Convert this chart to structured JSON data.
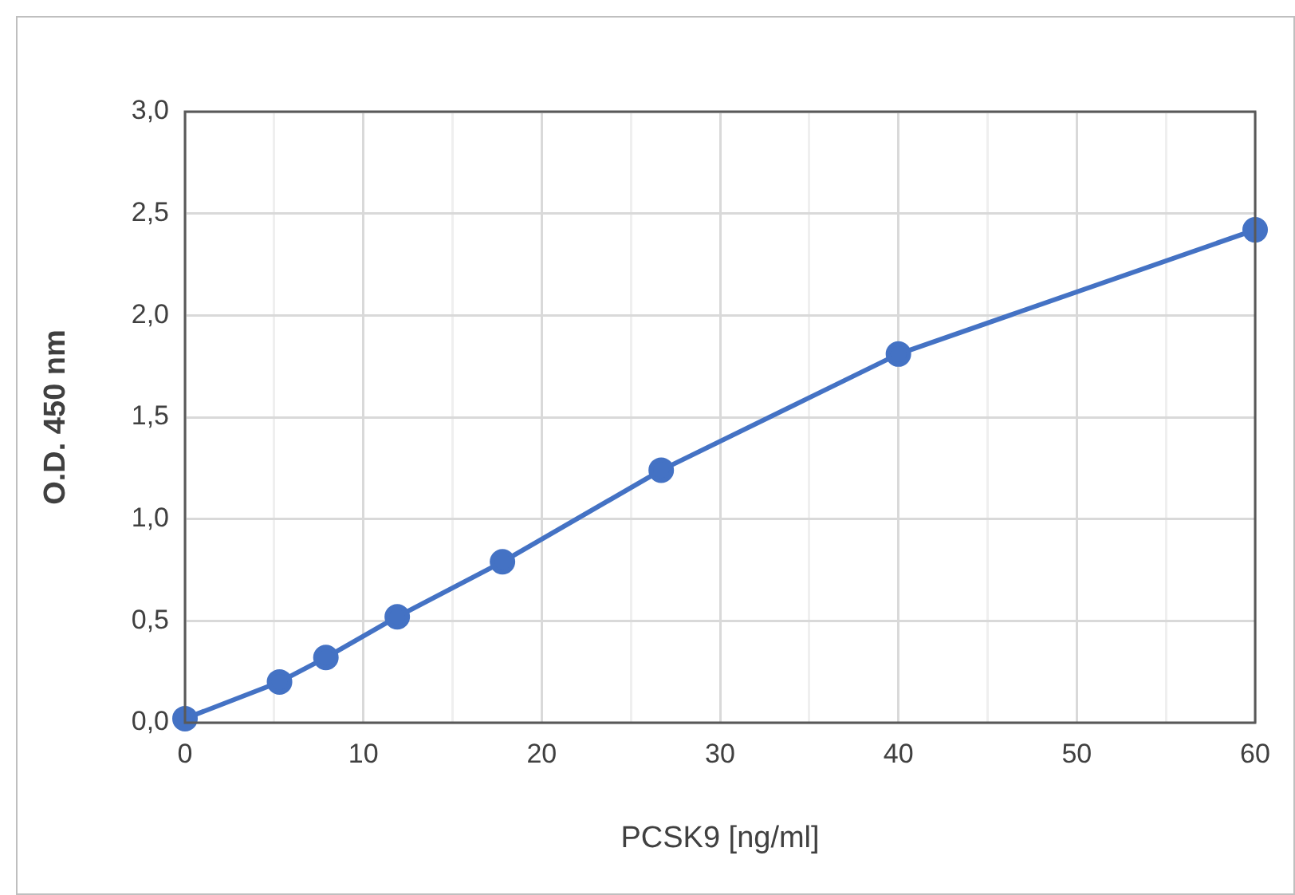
{
  "chart_data": {
    "type": "line",
    "xlabel": "PCSK9 [ng/ml]",
    "ylabel": "O.D. 450 nm",
    "x": [
      0,
      5.3,
      7.9,
      11.9,
      17.8,
      26.7,
      40,
      60
    ],
    "series": [
      {
        "color": "#4472c4",
        "values": [
          0.02,
          0.2,
          0.32,
          0.52,
          0.79,
          1.24,
          1.81,
          2.42
        ]
      }
    ],
    "xlim": [
      0,
      60
    ],
    "xticks": [
      0,
      {
        "value": 5,
        "label": null
      },
      10,
      {
        "value": 15,
        "label": null
      },
      20,
      {
        "value": 25,
        "label": null
      },
      30,
      {
        "value": 35,
        "label": null
      },
      40,
      {
        "value": 45,
        "label": null
      },
      50,
      {
        "value": 55,
        "label": null
      },
      60
    ],
    "ylim": [
      0,
      3
    ],
    "yticks": [
      {
        "value": 0,
        "label": "0,0"
      },
      {
        "value": 0.5,
        "label": "0,5"
      },
      {
        "value": 1,
        "label": "1,0"
      },
      {
        "value": 1.5,
        "label": "1,5"
      },
      {
        "value": 2,
        "label": "2,0"
      },
      {
        "value": 2.5,
        "label": "2,5"
      },
      {
        "value": 3,
        "label": "3,0"
      }
    ],
    "grid": true,
    "legend": false,
    "marker": "circle",
    "line_style": "solid"
  }
}
